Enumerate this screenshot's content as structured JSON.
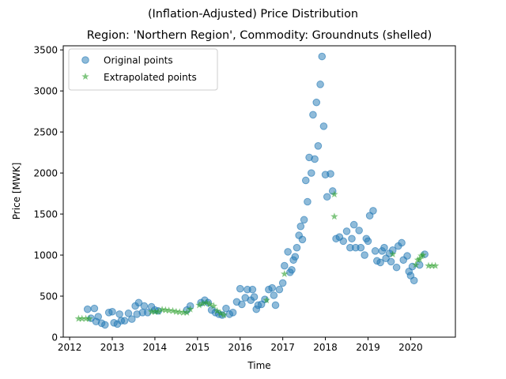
{
  "chart_data": {
    "type": "scatter",
    "suptitle": "(Inflation-Adjusted) Price Distribution",
    "title": "Region: 'Northern Region', Commodity: Groundnuts (shelled)",
    "xlabel": "Time",
    "ylabel": "Price [MWK]",
    "xlim": [
      2011.85,
      2021.05
    ],
    "ylim": [
      0,
      3550
    ],
    "x_ticks": [
      2012,
      2013,
      2014,
      2015,
      2016,
      2017,
      2018,
      2019,
      2020
    ],
    "y_ticks": [
      0,
      500,
      1000,
      1500,
      2000,
      2500,
      3000,
      3500
    ],
    "grid": false,
    "legend_position": "upper-left",
    "series": [
      {
        "name": "Original points",
        "marker": "circle",
        "color": "#1f77b4",
        "points": [
          [
            2012.42,
            340
          ],
          [
            2012.5,
            230
          ],
          [
            2012.58,
            350
          ],
          [
            2012.62,
            190
          ],
          [
            2012.67,
            250
          ],
          [
            2012.75,
            170
          ],
          [
            2012.83,
            150
          ],
          [
            2012.92,
            300
          ],
          [
            2013.0,
            310
          ],
          [
            2013.04,
            175
          ],
          [
            2013.12,
            160
          ],
          [
            2013.17,
            280
          ],
          [
            2013.21,
            200
          ],
          [
            2013.29,
            200
          ],
          [
            2013.38,
            290
          ],
          [
            2013.46,
            220
          ],
          [
            2013.54,
            380
          ],
          [
            2013.58,
            280
          ],
          [
            2013.62,
            420
          ],
          [
            2013.71,
            300
          ],
          [
            2013.75,
            380
          ],
          [
            2013.83,
            300
          ],
          [
            2013.92,
            370
          ],
          [
            2014.0,
            330
          ],
          [
            2014.08,
            320
          ],
          [
            2014.75,
            330
          ],
          [
            2014.83,
            380
          ],
          [
            2015.08,
            420
          ],
          [
            2015.17,
            450
          ],
          [
            2015.25,
            420
          ],
          [
            2015.33,
            330
          ],
          [
            2015.42,
            300
          ],
          [
            2015.5,
            280
          ],
          [
            2015.58,
            270
          ],
          [
            2015.67,
            350
          ],
          [
            2015.75,
            280
          ],
          [
            2015.83,
            300
          ],
          [
            2015.92,
            430
          ],
          [
            2016.0,
            590
          ],
          [
            2016.04,
            400
          ],
          [
            2016.12,
            480
          ],
          [
            2016.17,
            580
          ],
          [
            2016.25,
            450
          ],
          [
            2016.29,
            580
          ],
          [
            2016.33,
            490
          ],
          [
            2016.38,
            340
          ],
          [
            2016.42,
            390
          ],
          [
            2016.5,
            400
          ],
          [
            2016.58,
            460
          ],
          [
            2016.67,
            580
          ],
          [
            2016.75,
            600
          ],
          [
            2016.79,
            510
          ],
          [
            2016.83,
            390
          ],
          [
            2016.92,
            580
          ],
          [
            2017.0,
            660
          ],
          [
            2017.04,
            870
          ],
          [
            2017.12,
            1040
          ],
          [
            2017.17,
            790
          ],
          [
            2017.21,
            820
          ],
          [
            2017.25,
            940
          ],
          [
            2017.29,
            980
          ],
          [
            2017.33,
            1090
          ],
          [
            2017.38,
            1240
          ],
          [
            2017.42,
            1350
          ],
          [
            2017.46,
            1190
          ],
          [
            2017.5,
            1430
          ],
          [
            2017.54,
            1910
          ],
          [
            2017.58,
            1650
          ],
          [
            2017.62,
            2190
          ],
          [
            2017.67,
            2000
          ],
          [
            2017.71,
            2710
          ],
          [
            2017.75,
            2170
          ],
          [
            2017.79,
            2860
          ],
          [
            2017.83,
            2330
          ],
          [
            2017.88,
            3080
          ],
          [
            2017.92,
            3420
          ],
          [
            2017.96,
            2570
          ],
          [
            2018.0,
            1980
          ],
          [
            2018.04,
            1710
          ],
          [
            2018.12,
            1990
          ],
          [
            2018.17,
            1780
          ],
          [
            2018.25,
            1200
          ],
          [
            2018.33,
            1220
          ],
          [
            2018.42,
            1170
          ],
          [
            2018.5,
            1290
          ],
          [
            2018.58,
            1090
          ],
          [
            2018.62,
            1200
          ],
          [
            2018.67,
            1370
          ],
          [
            2018.71,
            1090
          ],
          [
            2018.79,
            1300
          ],
          [
            2018.83,
            1090
          ],
          [
            2018.92,
            1000
          ],
          [
            2018.96,
            1200
          ],
          [
            2019.0,
            1170
          ],
          [
            2019.04,
            1480
          ],
          [
            2019.12,
            1540
          ],
          [
            2019.17,
            1050
          ],
          [
            2019.21,
            930
          ],
          [
            2019.29,
            910
          ],
          [
            2019.33,
            1050
          ],
          [
            2019.38,
            1090
          ],
          [
            2019.42,
            960
          ],
          [
            2019.5,
            1020
          ],
          [
            2019.54,
            920
          ],
          [
            2019.58,
            1060
          ],
          [
            2019.67,
            850
          ],
          [
            2019.71,
            1110
          ],
          [
            2019.79,
            1150
          ],
          [
            2019.83,
            940
          ],
          [
            2019.92,
            990
          ],
          [
            2019.96,
            800
          ],
          [
            2020.0,
            750
          ],
          [
            2020.08,
            690
          ],
          [
            2020.04,
            860
          ],
          [
            2020.21,
            880
          ],
          [
            2020.33,
            1010
          ]
        ]
      },
      {
        "name": "Extrapolated points",
        "marker": "star",
        "color": "#2ca02c",
        "points": [
          [
            2012.21,
            225
          ],
          [
            2012.29,
            225
          ],
          [
            2012.38,
            225
          ],
          [
            2012.46,
            225
          ],
          [
            2013.92,
            310
          ],
          [
            2014.0,
            310
          ],
          [
            2014.08,
            310
          ],
          [
            2014.17,
            335
          ],
          [
            2014.25,
            330
          ],
          [
            2014.33,
            325
          ],
          [
            2014.42,
            320
          ],
          [
            2014.5,
            310
          ],
          [
            2014.58,
            305
          ],
          [
            2014.67,
            300
          ],
          [
            2014.75,
            300
          ],
          [
            2014.83,
            340
          ],
          [
            2015.04,
            390
          ],
          [
            2015.12,
            410
          ],
          [
            2015.21,
            420
          ],
          [
            2015.29,
            400
          ],
          [
            2015.38,
            380
          ],
          [
            2015.46,
            320
          ],
          [
            2015.54,
            290
          ],
          [
            2015.62,
            270
          ],
          [
            2016.62,
            450
          ],
          [
            2017.04,
            770
          ],
          [
            2018.21,
            1470
          ],
          [
            2018.21,
            1740
          ],
          [
            2019.58,
            1010
          ],
          [
            2020.12,
            880
          ],
          [
            2020.17,
            940
          ],
          [
            2020.21,
            950
          ],
          [
            2020.25,
            990
          ],
          [
            2020.29,
            1000
          ],
          [
            2020.42,
            870
          ],
          [
            2020.5,
            870
          ],
          [
            2020.58,
            870
          ]
        ]
      }
    ]
  }
}
